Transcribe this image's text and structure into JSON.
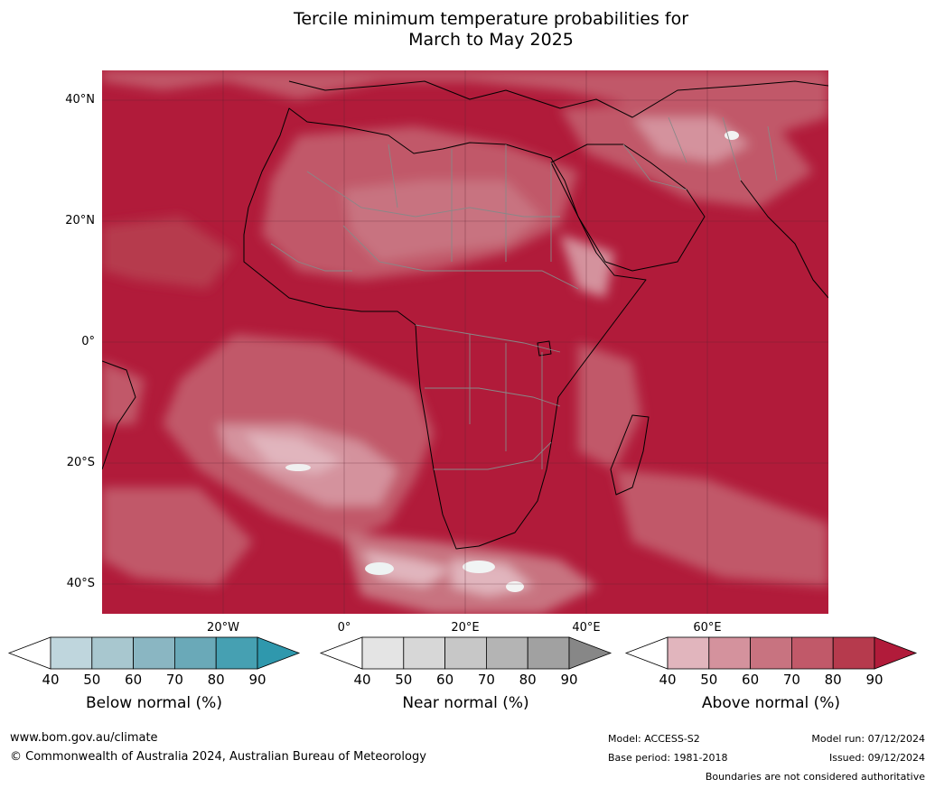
{
  "title": {
    "line1": "Tercile minimum temperature probabilities for",
    "line2": "March to May 2025"
  },
  "map": {
    "lat_labels": [
      "40°N",
      "20°N",
      "0°",
      "20°S",
      "40°S"
    ],
    "lon_labels": [
      "20°W",
      "0°",
      "20°E",
      "40°E",
      "60°E"
    ],
    "extent": {
      "lon": [
        -40,
        80
      ],
      "lat": [
        -45,
        45
      ]
    }
  },
  "colorbars": [
    {
      "name": "below",
      "title": "Below normal (%)",
      "ticks": [
        "40",
        "50",
        "60",
        "70",
        "80",
        "90"
      ],
      "colors": [
        "#ffffff",
        "#bfd6dd",
        "#a8c7cf",
        "#8ab6c2",
        "#6aa9b8",
        "#46a0b2",
        "#2f98ad"
      ]
    },
    {
      "name": "near",
      "title": "Near normal (%)",
      "ticks": [
        "40",
        "50",
        "60",
        "70",
        "80",
        "90"
      ],
      "colors": [
        "#ffffff",
        "#e4e4e4",
        "#d7d7d7",
        "#c7c7c7",
        "#b4b4b4",
        "#a1a1a1",
        "#878787"
      ]
    },
    {
      "name": "above",
      "title": "Above normal (%)",
      "ticks": [
        "40",
        "50",
        "60",
        "70",
        "80",
        "90"
      ],
      "colors": [
        "#ffffff",
        "#e1b5bd",
        "#d4929d",
        "#c87380",
        "#c15969",
        "#b63a4d",
        "#b11b3a"
      ]
    }
  ],
  "footer": {
    "url": "www.bom.gov.au/climate",
    "copyright": "© Commonwealth of Australia 2024, Australian Bureau of Meteorology",
    "model": "Model: ACCESS-S2",
    "base_period": "Base period: 1981-2018",
    "model_run": "Model run: 07/12/2024",
    "issued": "Issued: 09/12/2024",
    "disclaimer": "Boundaries are not considered authoritative"
  }
}
